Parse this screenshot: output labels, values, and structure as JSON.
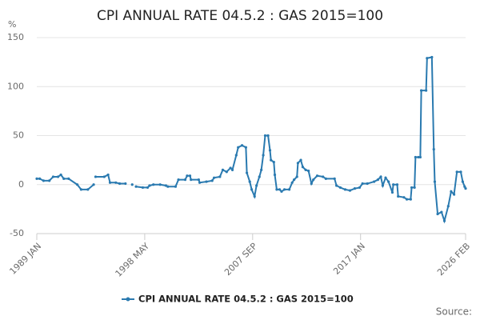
{
  "chart_data": {
    "type": "line",
    "title": "CPI ANNUAL RATE 04.5.2 : GAS 2015=100",
    "y_label": "%",
    "source": "Source:",
    "xlim": [
      "1989 JAN",
      "2026 FEB"
    ],
    "xticks": [
      "1989 JAN",
      "1998 MAY",
      "2007 SEP",
      "2017 JAN",
      "2026 FEB"
    ],
    "ylim": [
      -50,
      150
    ],
    "yticks": [
      -50,
      0,
      50,
      100,
      150
    ],
    "grid": true,
    "legend": "bottom",
    "x": [
      "1989 JAN",
      "1989 APR",
      "1989 AUG",
      "1990 FEB",
      "1990 JUN",
      "1990 NOV",
      "1991 FEB",
      "1991 MAY",
      "1991 OCT",
      "1992 JUL",
      "1992 NOV",
      "1993 JUN",
      "1993 DEC",
      "1994 JAN",
      "1994 FEB",
      "1994 NOV",
      "1995 MAR",
      "1995 MAY",
      "1995 NOV",
      "1996 MAR",
      "1996 SEP",
      "1996 DEC",
      "1997 APR",
      "1997 JUN",
      "1997 AUG",
      "1998 MAR",
      "1998 AUG",
      "1998 OCT",
      "1999 FEB",
      "1999 SEP",
      "2000 MAR",
      "2000 MAY",
      "2001 JAN",
      "2001 APR",
      "2001 NOV",
      "2002 JAN",
      "2002 APR",
      "2002 MAY",
      "2003 JAN",
      "2003 FEB",
      "2003 SEP",
      "2004 MAR",
      "2004 MAY",
      "2004 NOV",
      "2005 FEB",
      "2005 JUN",
      "2005 OCT",
      "2005 DEC",
      "2006 APR",
      "2006 JUN",
      "2006 OCT",
      "2007 FEB",
      "2007 MAR",
      "2007 JUN",
      "2007 AUG",
      "2007 NOV",
      "2008 JAN",
      "2008 APR",
      "2008 JUN",
      "2008 AUG",
      "2008 OCT",
      "2009 JAN",
      "2009 MAR",
      "2009 APR",
      "2009 JUL",
      "2009 AUG",
      "2009 OCT",
      "2010 JAN",
      "2010 MAR",
      "2010 JUN",
      "2010 NOV",
      "2011 FEB",
      "2011 APR",
      "2011 JUL",
      "2011 AUG",
      "2011 NOV",
      "2012 JAN",
      "2012 APR",
      "2012 JUL",
      "2012 OCT",
      "2012 DEC",
      "2013 APR",
      "2013 OCT",
      "2014 JAN",
      "2014 OCT",
      "2014 DEC",
      "2015 APR",
      "2015 SEP",
      "2016 FEB",
      "2016 JUL",
      "2016 DEC",
      "2017 MAR",
      "2017 AUG",
      "2018 MAR",
      "2018 JUL",
      "2018 OCT",
      "2018 DEC",
      "2019 MAR",
      "2019 JUN",
      "2019 OCT",
      "2019 NOV",
      "2020 MAR",
      "2020 APR",
      "2020 OCT",
      "2021 JAN",
      "2021 MAY",
      "2021 JUN",
      "2021 SEP",
      "2021 OCT",
      "2022 JAN",
      "2022 MAR",
      "2022 APR",
      "2022 SEP",
      "2022 OCT",
      "2023 MAR",
      "2023 MAY",
      "2023 JUN",
      "2023 SEP",
      "2024 JAN",
      "2024 APR",
      "2024 AUG",
      "2024 NOV",
      "2025 FEB",
      "2025 MAY",
      "2025 SEP",
      "2025 NOV",
      "2026 JAN",
      "2026 FEB"
    ],
    "series": [
      {
        "name": "CPI ANNUAL RATE 04.5.2 : GAS 2015=100",
        "color": "#2a7ab0",
        "values": [
          6,
          6,
          4,
          4,
          8,
          8,
          10,
          6,
          6,
          0,
          -5,
          -5,
          0,
          null,
          8,
          8,
          10,
          2,
          2,
          1,
          1,
          null,
          0,
          null,
          -2,
          -3,
          -3,
          -1,
          0,
          0,
          -1,
          -2,
          -2,
          5,
          5,
          9,
          9,
          5,
          5,
          2,
          3,
          4,
          7,
          8,
          15,
          13,
          17,
          15,
          30,
          38,
          40,
          38,
          12,
          3,
          -5,
          -12,
          -1,
          8,
          15,
          30,
          50,
          50,
          35,
          25,
          23,
          10,
          -5,
          -5,
          -7,
          -5,
          -5,
          2,
          5,
          8,
          22,
          25,
          18,
          15,
          14,
          1,
          5,
          9,
          8,
          6,
          6,
          -1,
          -3,
          -5,
          -6,
          -4,
          -3,
          1,
          1,
          3,
          5,
          8,
          -1,
          7,
          3,
          -8,
          0,
          0,
          -12,
          -13,
          -15,
          -15,
          -3,
          -3,
          28,
          28,
          28,
          96,
          96,
          129,
          130,
          36,
          3,
          -30,
          -28,
          -37,
          -22,
          -7,
          -10,
          13,
          13,
          3,
          -2,
          -4
        ]
      }
    ]
  }
}
